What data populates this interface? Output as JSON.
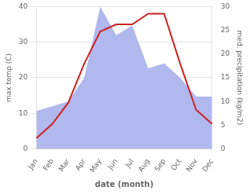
{
  "chart_data": {
    "type": "line",
    "categories": [
      "Jan",
      "Feb",
      "Mar",
      "Apr",
      "May",
      "Jun",
      "Jul",
      "Aug",
      "Sep",
      "Oct",
      "Nov",
      "Dec"
    ],
    "series": [
      {
        "type": "area",
        "axis": "y2",
        "color": "#b0b8ee",
        "values": [
          8,
          9,
          10,
          15,
          30,
          24,
          26,
          17,
          18,
          15,
          11,
          11
        ]
      },
      {
        "type": "line",
        "axis": "y",
        "color": "#cc2222",
        "values": [
          3,
          7,
          13,
          24,
          33,
          35,
          35,
          38,
          38,
          24,
          11,
          7
        ]
      }
    ],
    "xlabel": "date (month)",
    "ylabel": "max temp (C)",
    "y2label": "med. precipitation (kg/m2)",
    "ylim": [
      0,
      40
    ],
    "yticks": [
      0,
      10,
      20,
      30,
      40
    ],
    "y2lim": [
      0,
      30
    ],
    "y2ticks": [
      0,
      5,
      10,
      15,
      20,
      25,
      30
    ],
    "grid": true
  }
}
